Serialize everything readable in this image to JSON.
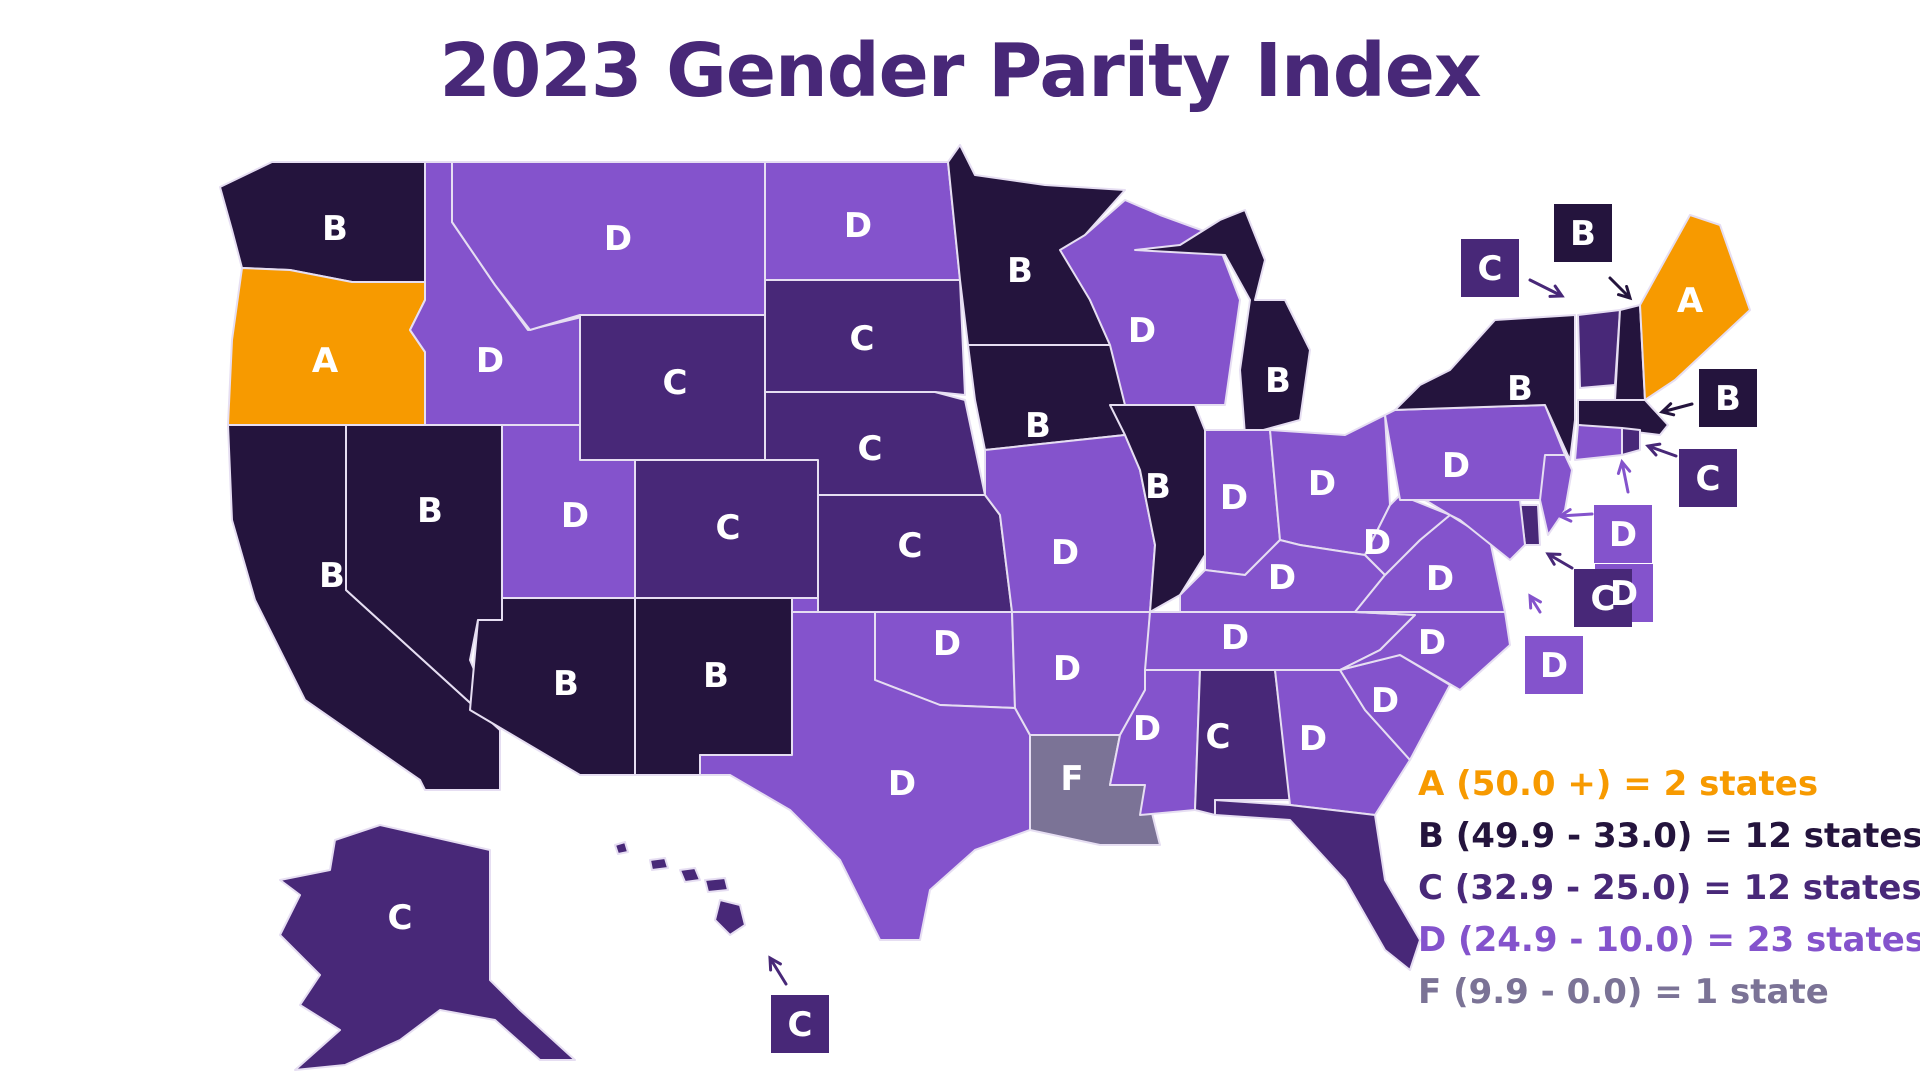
{
  "title": "2023 Gender Parity Index",
  "colors": {
    "A": "#f79a00",
    "B": "#24143d",
    "C": "#482878",
    "D": "#8453cc",
    "F": "#7b7396",
    "border": "#e6def2",
    "label": "#ffffff"
  },
  "legend": [
    {
      "grade": "A",
      "text": "A (50.0 +) = 2 states",
      "color": "#f79a00"
    },
    {
      "grade": "B",
      "text": "B (49.9 - 33.0) = 12 states",
      "color": "#24143d"
    },
    {
      "grade": "C",
      "text": "C (32.9 - 25.0) = 12 states",
      "color": "#482878"
    },
    {
      "grade": "D",
      "text": "D (24.9 - 10.0) = 23 states",
      "color": "#8453cc"
    },
    {
      "grade": "F",
      "text": "F (9.9 - 0.0) = 1 state",
      "color": "#7b7396"
    }
  ],
  "states": [
    {
      "id": "WA",
      "grade": "B"
    },
    {
      "id": "OR",
      "grade": "A"
    },
    {
      "id": "CA",
      "grade": "B"
    },
    {
      "id": "NV",
      "grade": "B"
    },
    {
      "id": "ID",
      "grade": "D"
    },
    {
      "id": "MT",
      "grade": "D"
    },
    {
      "id": "WY",
      "grade": "C"
    },
    {
      "id": "UT",
      "grade": "D"
    },
    {
      "id": "CO",
      "grade": "C"
    },
    {
      "id": "AZ",
      "grade": "B"
    },
    {
      "id": "NM",
      "grade": "B"
    },
    {
      "id": "ND",
      "grade": "D"
    },
    {
      "id": "SD",
      "grade": "C"
    },
    {
      "id": "NE",
      "grade": "C"
    },
    {
      "id": "KS",
      "grade": "C"
    },
    {
      "id": "OK",
      "grade": "D"
    },
    {
      "id": "TX",
      "grade": "D"
    },
    {
      "id": "MN",
      "grade": "B"
    },
    {
      "id": "IA",
      "grade": "B"
    },
    {
      "id": "MO",
      "grade": "D"
    },
    {
      "id": "AR",
      "grade": "D"
    },
    {
      "id": "LA",
      "grade": "F"
    },
    {
      "id": "WI",
      "grade": "D"
    },
    {
      "id": "IL",
      "grade": "B"
    },
    {
      "id": "MI",
      "grade": "B"
    },
    {
      "id": "IN",
      "grade": "D"
    },
    {
      "id": "OH",
      "grade": "D"
    },
    {
      "id": "KY",
      "grade": "D"
    },
    {
      "id": "TN",
      "grade": "D"
    },
    {
      "id": "MS",
      "grade": "D"
    },
    {
      "id": "AL",
      "grade": "C"
    },
    {
      "id": "GA",
      "grade": "D"
    },
    {
      "id": "FL",
      "grade": "C"
    },
    {
      "id": "SC",
      "grade": "D"
    },
    {
      "id": "NC",
      "grade": "D"
    },
    {
      "id": "VA",
      "grade": "D"
    },
    {
      "id": "WV",
      "grade": "D"
    },
    {
      "id": "PA",
      "grade": "D"
    },
    {
      "id": "NY",
      "grade": "B"
    },
    {
      "id": "VT",
      "grade": "C"
    },
    {
      "id": "NH",
      "grade": "B"
    },
    {
      "id": "ME",
      "grade": "A"
    },
    {
      "id": "MA",
      "grade": "B"
    },
    {
      "id": "CT",
      "grade": "D"
    },
    {
      "id": "RI",
      "grade": "C"
    },
    {
      "id": "NJ",
      "grade": "D"
    },
    {
      "id": "DE",
      "grade": "C"
    },
    {
      "id": "MD",
      "grade": "D"
    },
    {
      "id": "AK",
      "grade": "C"
    },
    {
      "id": "HI",
      "grade": "C"
    }
  ]
}
